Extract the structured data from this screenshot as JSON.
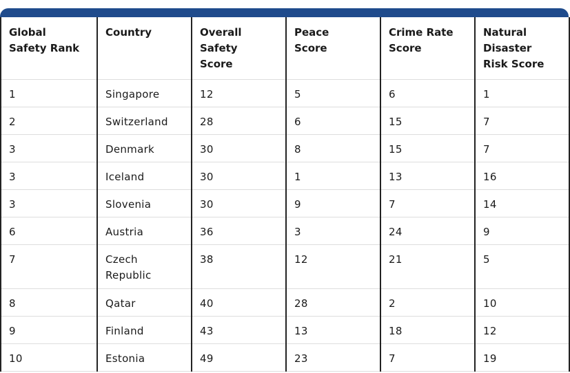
{
  "table": {
    "columns": [
      "Global Safety Rank",
      "Country",
      "Overall Safety Score",
      "Peace Score",
      "Crime Rate Score",
      "Natural Disaster Risk Score"
    ],
    "rows": [
      [
        1,
        "Singapore",
        12,
        5,
        6,
        1
      ],
      [
        2,
        "Switzerland",
        28,
        6,
        15,
        7
      ],
      [
        3,
        "Denmark",
        30,
        8,
        15,
        7
      ],
      [
        3,
        "Iceland",
        30,
        1,
        13,
        16
      ],
      [
        3,
        "Slovenia",
        30,
        9,
        7,
        14
      ],
      [
        6,
        "Austria",
        36,
        3,
        24,
        9
      ],
      [
        7,
        "Czech Republic",
        38,
        12,
        21,
        5
      ],
      [
        8,
        "Qatar",
        40,
        28,
        2,
        10
      ],
      [
        9,
        "Finland",
        43,
        13,
        18,
        12
      ],
      [
        10,
        "Estonia",
        49,
        23,
        7,
        19
      ]
    ]
  }
}
